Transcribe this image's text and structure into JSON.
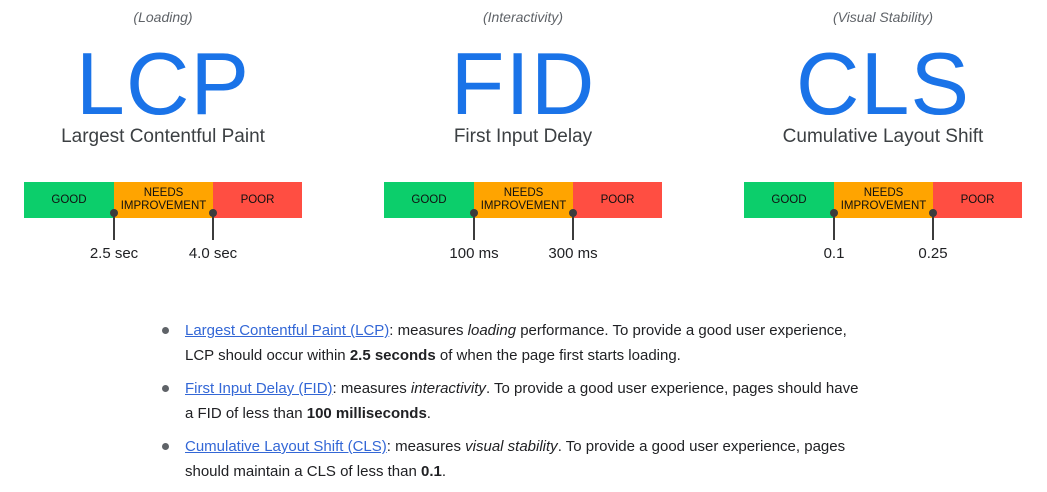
{
  "metrics": [
    {
      "category": "(Loading)",
      "acronym": "LCP",
      "name": "Largest Contentful Paint",
      "bar": {
        "good": "GOOD",
        "needs_line1": "NEEDS",
        "needs_line2": "IMPROVEMENT",
        "poor": "POOR"
      },
      "thresholds": [
        "2.5 sec",
        "4.0 sec"
      ]
    },
    {
      "category": "(Interactivity)",
      "acronym": "FID",
      "name": "First Input Delay",
      "bar": {
        "good": "GOOD",
        "needs_line1": "NEEDS",
        "needs_line2": "IMPROVEMENT",
        "poor": "POOR"
      },
      "thresholds": [
        "100 ms",
        "300 ms"
      ]
    },
    {
      "category": "(Visual Stability)",
      "acronym": "CLS",
      "name": "Cumulative Layout Shift",
      "bar": {
        "good": "GOOD",
        "needs_line1": "NEEDS",
        "needs_line2": "IMPROVEMENT",
        "poor": "POOR"
      },
      "thresholds": [
        "0.1",
        "0.25"
      ]
    }
  ],
  "descriptions": [
    {
      "link": "Largest Contentful Paint (LCP)",
      "t1": ": measures ",
      "em": "loading",
      "t2": " performance. To provide a good user experience, LCP should occur within ",
      "strong": "2.5 seconds",
      "t3": " of when the page first starts loading."
    },
    {
      "link": "First Input Delay (FID)",
      "t1": ": measures ",
      "em": "interactivity",
      "t2": ". To provide a good user experience, pages should have a FID of less than ",
      "strong": "100 milliseconds",
      "t3": "."
    },
    {
      "link": "Cumulative Layout Shift (CLS)",
      "t1": ": measures ",
      "em": "visual stability",
      "t2": ". To provide a good user experience, pages should maintain a CLS of less than ",
      "strong": "0.1",
      "t3": "."
    }
  ],
  "colors": {
    "accent": "#1a73e8",
    "good": "#0cce6b",
    "needs_improvement": "#ffa400",
    "poor": "#ff4e42",
    "link": "#3367d6"
  }
}
